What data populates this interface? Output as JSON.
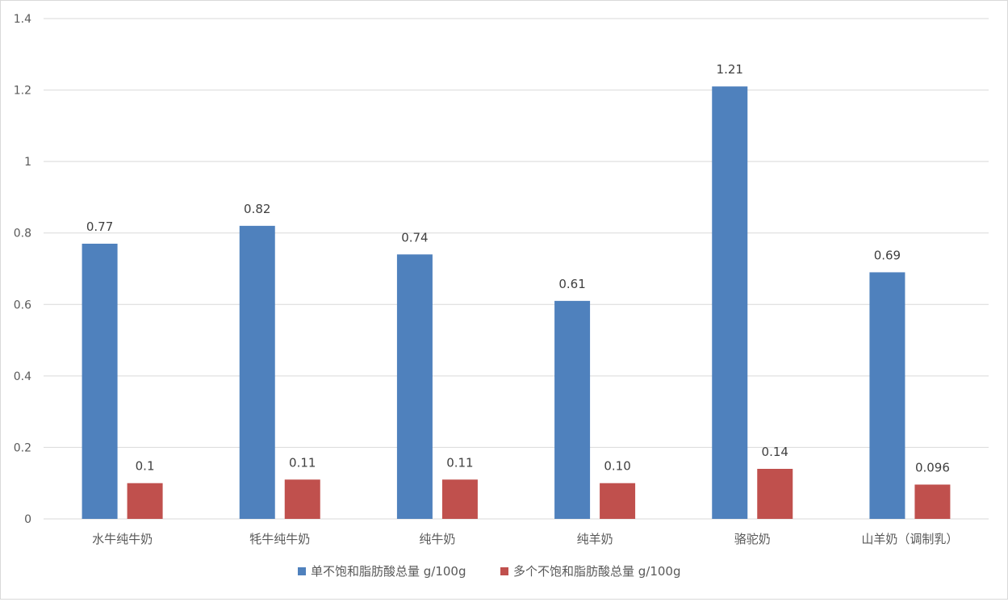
{
  "chart_data": {
    "type": "bar",
    "title": "",
    "xlabel": "",
    "ylabel": "",
    "categories": [
      "水牛纯牛奶",
      "牦牛纯牛奶",
      "纯牛奶",
      "纯羊奶",
      "骆驼奶",
      "山羊奶（调制乳）"
    ],
    "series": [
      {
        "name": "单不饱和脂肪酸总量 g/100g",
        "values": [
          0.77,
          0.82,
          0.74,
          0.61,
          1.21,
          0.69
        ],
        "labels": [
          "0.77",
          "0.82",
          "0.74",
          "0.61",
          "1.21",
          "0.69"
        ],
        "color": "#4f81bd"
      },
      {
        "name": "多个不饱和脂肪酸总量 g/100g",
        "values": [
          0.1,
          0.11,
          0.11,
          0.1,
          0.14,
          0.096
        ],
        "labels": [
          "0.1",
          "0.11",
          "0.11",
          "0.10",
          "0.14",
          "0.096"
        ],
        "color": "#c0504d"
      }
    ],
    "ylim": [
      0,
      1.4
    ],
    "yticks": [
      "0",
      "0.2",
      "0.4",
      "0.6",
      "0.8",
      "1",
      "1.2",
      "1.4"
    ],
    "grid": true,
    "legend_position": "bottom"
  }
}
